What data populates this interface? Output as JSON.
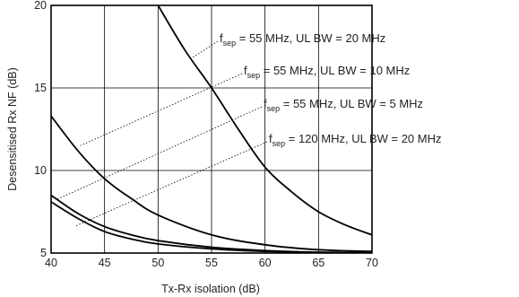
{
  "chart_data": {
    "type": "line",
    "xlabel": "Tx-Rx isolation (dB)",
    "ylabel": "Desensitised Rx NF (dB)",
    "xlim": [
      40,
      70
    ],
    "xticks": [
      40,
      45,
      50,
      55,
      60,
      65,
      70
    ],
    "ylim": [
      5,
      20
    ],
    "yticks": [
      5,
      10,
      15,
      20
    ],
    "grid": true,
    "series": [
      {
        "name": "f",
        "name_sub": "sep",
        "name_rest": " = 55 MHz,  UL BW = 20 MHz",
        "color": "#000000",
        "x": [
          50,
          52.5,
          55,
          57.5,
          60,
          62.5,
          65,
          67.5,
          70
        ],
        "values": [
          20,
          17.3,
          15,
          12.5,
          10.2,
          8.7,
          7.5,
          6.7,
          6.1
        ]
      },
      {
        "name": "f",
        "name_sub": "sep",
        "name_rest": " = 55 MHz,  UL BW = 10 MHz",
        "color": "#000000",
        "x": [
          40,
          42.5,
          45,
          47.5,
          50,
          55,
          60,
          65,
          70
        ],
        "values": [
          13.3,
          11.2,
          9.5,
          8.3,
          7.3,
          6.1,
          5.5,
          5.2,
          5.1
        ]
      },
      {
        "name": "f",
        "name_sub": "sep",
        "name_rest": " = 55 MHz,  UL BW = 5 MHz",
        "color": "#000000",
        "x": [
          40,
          42.5,
          45,
          47.5,
          50,
          55,
          60,
          65,
          70
        ],
        "values": [
          8.5,
          7.4,
          6.6,
          6.1,
          5.75,
          5.35,
          5.15,
          5.05,
          5.02
        ]
      },
      {
        "name": "f",
        "name_sub": "sep",
        "name_rest": " = 120 MHz,  UL BW = 20 MHz",
        "color": "#000000",
        "x": [
          40,
          42.5,
          45,
          47.5,
          50,
          55,
          60,
          65,
          70
        ],
        "values": [
          8.1,
          7.1,
          6.3,
          5.85,
          5.55,
          5.25,
          5.1,
          5.03,
          5.01
        ]
      }
    ]
  }
}
